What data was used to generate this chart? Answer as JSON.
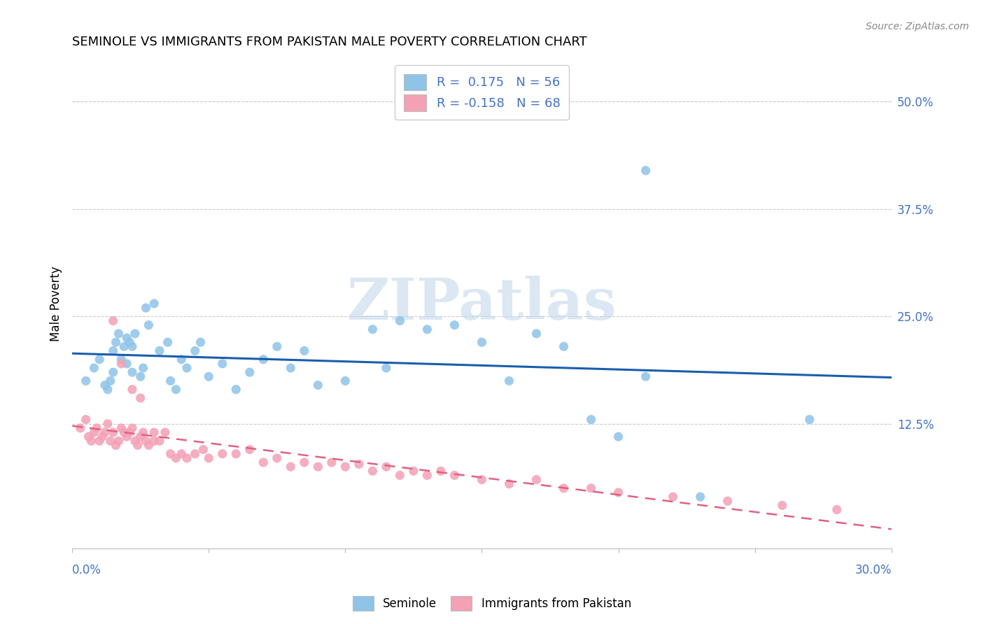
{
  "title": "SEMINOLE VS IMMIGRANTS FROM PAKISTAN MALE POVERTY CORRELATION CHART",
  "source": "Source: ZipAtlas.com",
  "ylabel": "Male Poverty",
  "yticks": [
    0.125,
    0.25,
    0.375,
    0.5
  ],
  "ytick_labels": [
    "12.5%",
    "25.0%",
    "37.5%",
    "50.0%"
  ],
  "xlim": [
    0.0,
    0.3
  ],
  "ylim": [
    -0.02,
    0.55
  ],
  "color_blue": "#8EC4E8",
  "color_pink": "#F4A0B5",
  "color_blue_line": "#1A5DAD",
  "color_pink_line": "#E06080",
  "color_axis": "#4472C4",
  "watermark_color": "#BFD4E8",
  "seminole_x": [
    0.005,
    0.008,
    0.01,
    0.012,
    0.013,
    0.014,
    0.015,
    0.015,
    0.016,
    0.017,
    0.018,
    0.019,
    0.02,
    0.02,
    0.021,
    0.022,
    0.022,
    0.023,
    0.025,
    0.026,
    0.027,
    0.028,
    0.03,
    0.032,
    0.035,
    0.036,
    0.038,
    0.04,
    0.042,
    0.045,
    0.047,
    0.05,
    0.055,
    0.06,
    0.065,
    0.07,
    0.075,
    0.08,
    0.085,
    0.09,
    0.1,
    0.11,
    0.115,
    0.12,
    0.13,
    0.14,
    0.15,
    0.16,
    0.17,
    0.18,
    0.19,
    0.2,
    0.21,
    0.23,
    0.27,
    0.21
  ],
  "seminole_y": [
    0.175,
    0.19,
    0.2,
    0.17,
    0.165,
    0.175,
    0.185,
    0.21,
    0.22,
    0.23,
    0.2,
    0.215,
    0.195,
    0.225,
    0.22,
    0.185,
    0.215,
    0.23,
    0.18,
    0.19,
    0.26,
    0.24,
    0.265,
    0.21,
    0.22,
    0.175,
    0.165,
    0.2,
    0.19,
    0.21,
    0.22,
    0.18,
    0.195,
    0.165,
    0.185,
    0.2,
    0.215,
    0.19,
    0.21,
    0.17,
    0.175,
    0.235,
    0.19,
    0.245,
    0.235,
    0.24,
    0.22,
    0.175,
    0.23,
    0.215,
    0.13,
    0.11,
    0.18,
    0.04,
    0.13,
    0.42
  ],
  "pakistan_x": [
    0.003,
    0.005,
    0.006,
    0.007,
    0.008,
    0.009,
    0.01,
    0.011,
    0.012,
    0.013,
    0.014,
    0.015,
    0.016,
    0.017,
    0.018,
    0.019,
    0.02,
    0.021,
    0.022,
    0.023,
    0.024,
    0.025,
    0.026,
    0.027,
    0.028,
    0.03,
    0.032,
    0.034,
    0.036,
    0.038,
    0.04,
    0.042,
    0.045,
    0.048,
    0.05,
    0.055,
    0.06,
    0.065,
    0.07,
    0.075,
    0.08,
    0.085,
    0.09,
    0.095,
    0.1,
    0.105,
    0.11,
    0.115,
    0.12,
    0.125,
    0.13,
    0.135,
    0.14,
    0.15,
    0.16,
    0.17,
    0.18,
    0.19,
    0.2,
    0.22,
    0.24,
    0.26,
    0.28,
    0.015,
    0.018,
    0.022,
    0.025,
    0.03
  ],
  "pakistan_y": [
    0.12,
    0.13,
    0.11,
    0.105,
    0.115,
    0.12,
    0.105,
    0.11,
    0.115,
    0.125,
    0.105,
    0.115,
    0.1,
    0.105,
    0.12,
    0.115,
    0.11,
    0.115,
    0.12,
    0.105,
    0.1,
    0.11,
    0.115,
    0.105,
    0.1,
    0.115,
    0.105,
    0.115,
    0.09,
    0.085,
    0.09,
    0.085,
    0.09,
    0.095,
    0.085,
    0.09,
    0.09,
    0.095,
    0.08,
    0.085,
    0.075,
    0.08,
    0.075,
    0.08,
    0.075,
    0.078,
    0.07,
    0.075,
    0.065,
    0.07,
    0.065,
    0.07,
    0.065,
    0.06,
    0.055,
    0.06,
    0.05,
    0.05,
    0.045,
    0.04,
    0.035,
    0.03,
    0.025,
    0.245,
    0.195,
    0.165,
    0.155,
    0.105
  ]
}
